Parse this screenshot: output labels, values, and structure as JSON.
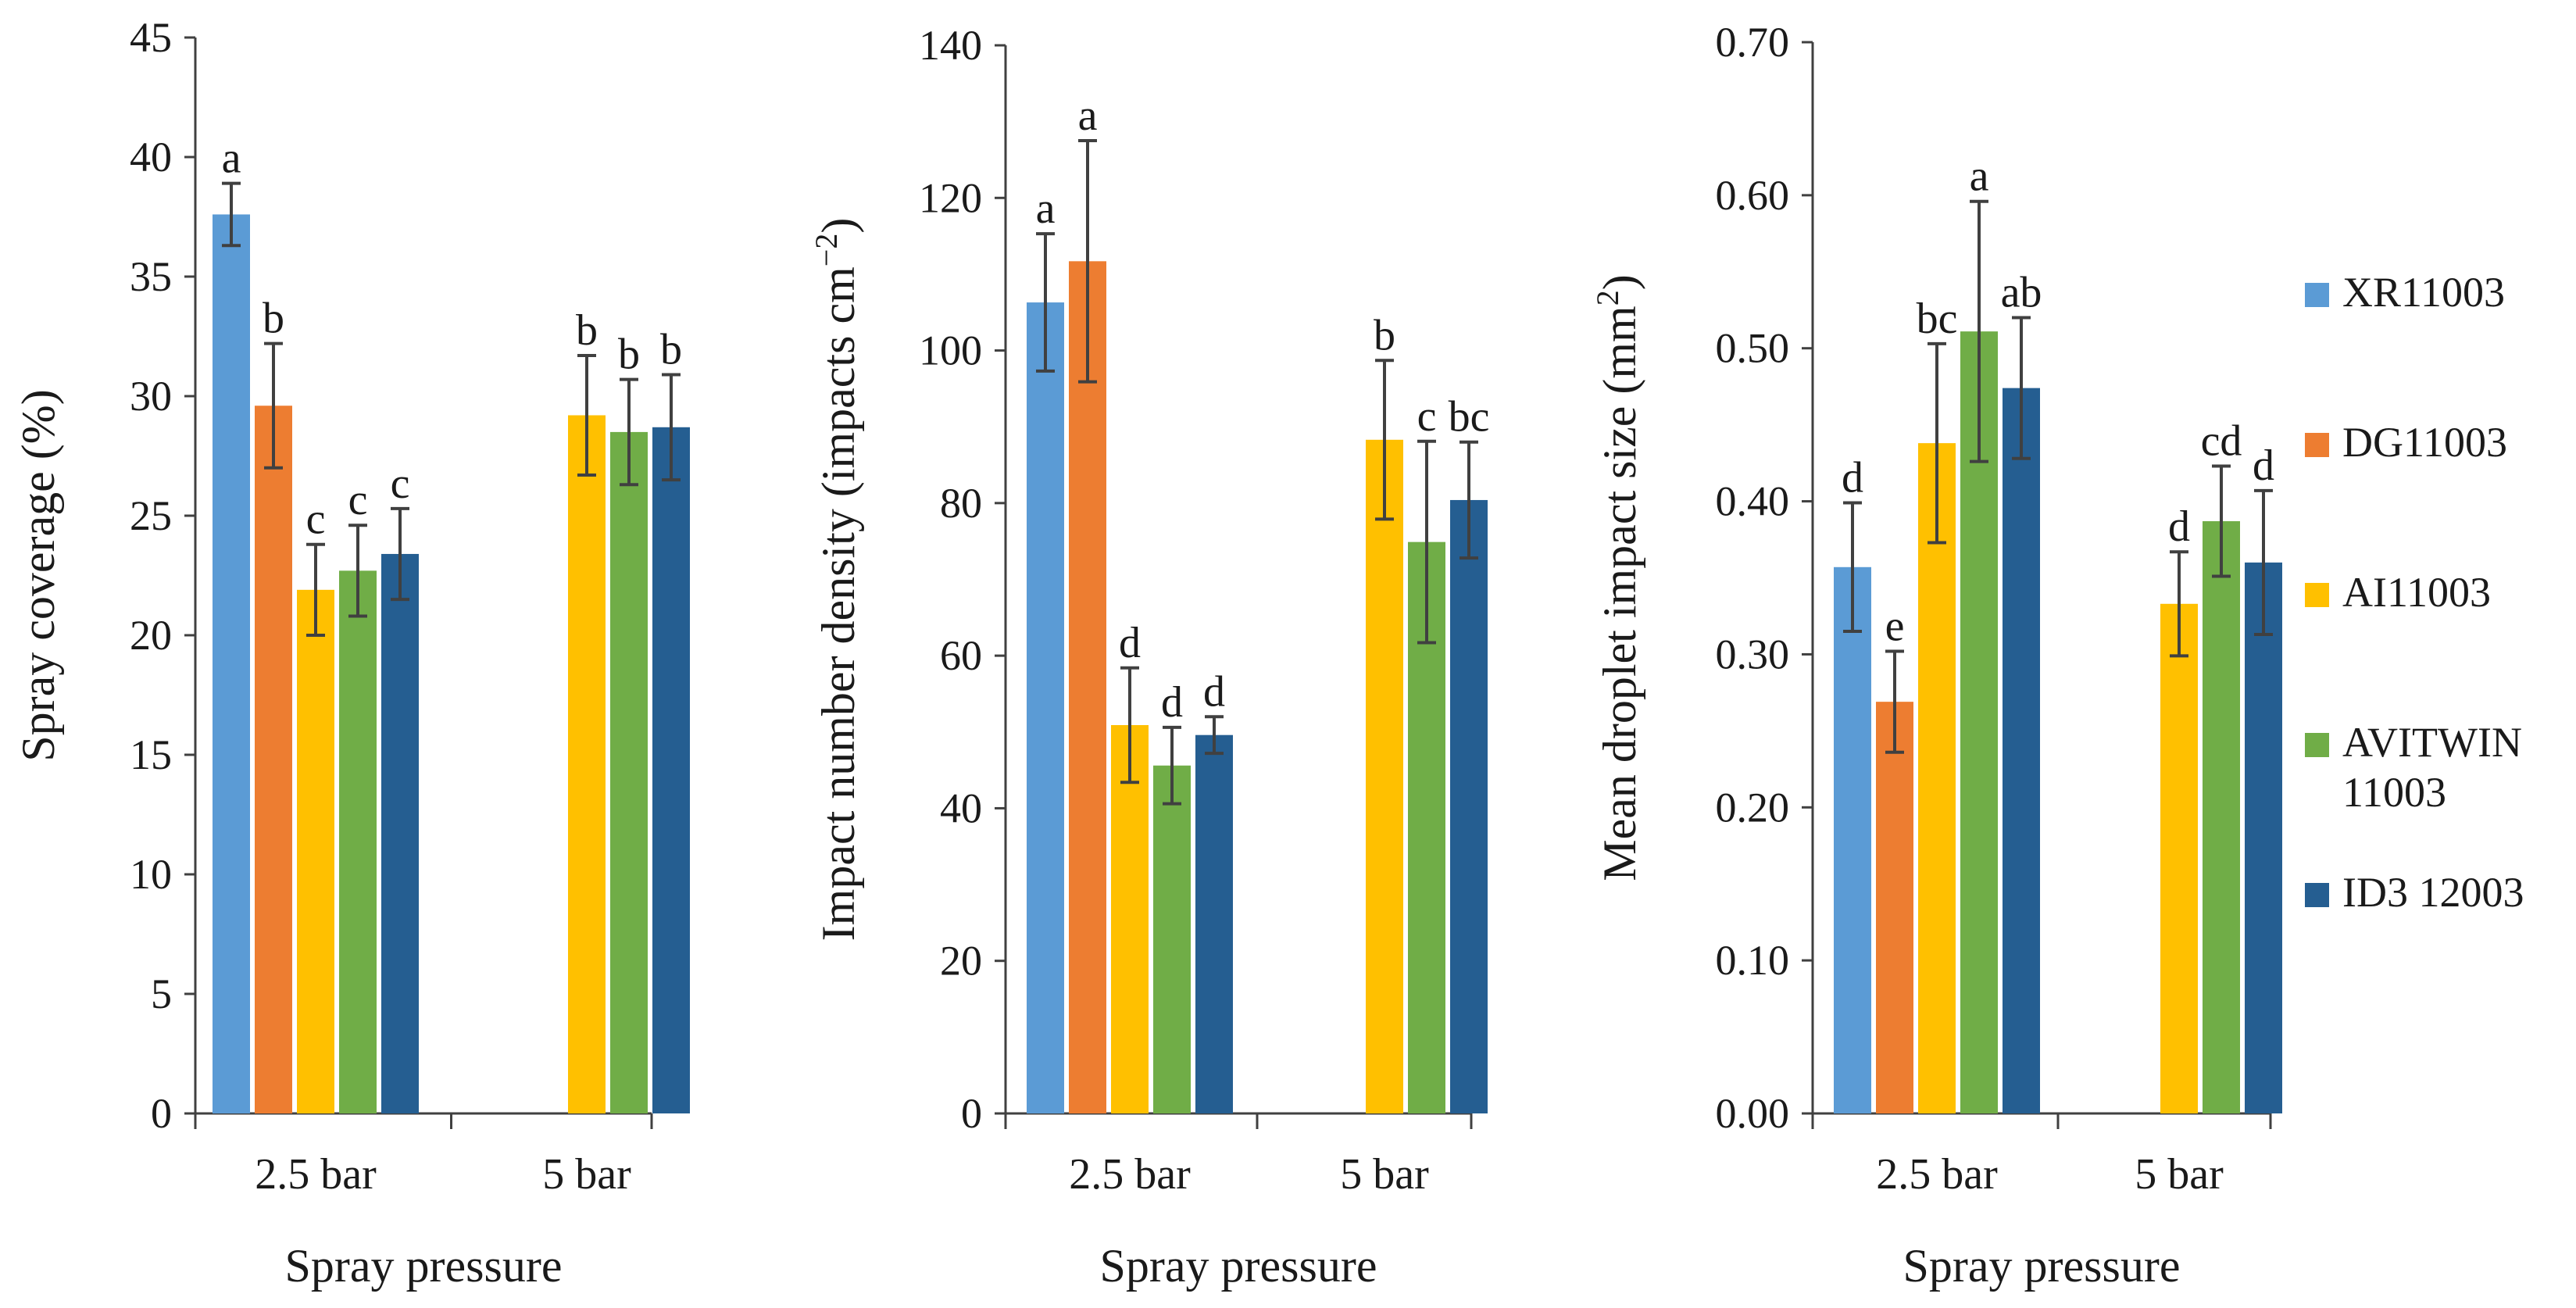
{
  "series_colors": {
    "XR11003": "#5B9BD5",
    "DG11003": "#ED7D31",
    "AI11003": "#FFC000",
    "AVITWIN 11003": "#70AD47",
    "ID3 12003": "#255E91"
  },
  "legend": {
    "entries": [
      {
        "name": "XR11003",
        "lines": [
          "XR11003"
        ]
      },
      {
        "name": "DG11003",
        "lines": [
          "DG11003"
        ]
      },
      {
        "name": "AI11003",
        "lines": [
          "AI11003"
        ]
      },
      {
        "name": "AVITWIN 11003",
        "lines": [
          "AVITWIN",
          "11003"
        ]
      },
      {
        "name": "ID3 12003",
        "lines": [
          "ID3  12003"
        ]
      }
    ]
  },
  "chart_data": [
    {
      "type": "bar",
      "title": "",
      "xlabel": "Spray pressure",
      "ylabel": "Spray coverage (%)",
      "ylim": [
        0,
        45
      ],
      "yticks": [
        "0",
        "5",
        "10",
        "15",
        "20",
        "25",
        "30",
        "35",
        "40",
        "45"
      ],
      "categories": [
        "2.5 bar",
        "5 bar"
      ],
      "series": [
        {
          "name": "XR11003",
          "values": [
            37.6,
            null
          ],
          "errors": [
            1.3,
            null
          ],
          "letters": [
            "a",
            null
          ]
        },
        {
          "name": "DG11003",
          "values": [
            29.6,
            null
          ],
          "errors": [
            2.6,
            null
          ],
          "letters": [
            "b",
            null
          ]
        },
        {
          "name": "AI11003",
          "values": [
            21.9,
            29.2
          ],
          "errors": [
            1.9,
            2.5
          ],
          "letters": [
            "c",
            "b"
          ]
        },
        {
          "name": "AVITWIN 11003",
          "values": [
            22.7,
            28.5
          ],
          "errors": [
            1.9,
            2.2
          ],
          "letters": [
            "c",
            "b"
          ]
        },
        {
          "name": "ID3 12003",
          "values": [
            23.4,
            28.7
          ],
          "errors": [
            1.9,
            2.2
          ],
          "letters": [
            "c",
            "b"
          ]
        }
      ]
    },
    {
      "type": "bar",
      "title": "",
      "xlabel": "Spray pressure",
      "ylabel": "Impact number density (impacts cm",
      "ylabel_sup": "−2",
      "ylabel_end": ")",
      "ylim": [
        0,
        140
      ],
      "yticks": [
        "0",
        "20",
        "40",
        "60",
        "80",
        "100",
        "120",
        "140"
      ],
      "categories": [
        "2.5 bar",
        "5 bar"
      ],
      "series": [
        {
          "name": "XR11003",
          "values": [
            106.3,
            null
          ],
          "errors": [
            9.0,
            null
          ],
          "letters": [
            "a",
            null
          ]
        },
        {
          "name": "DG11003",
          "values": [
            111.7,
            null
          ],
          "errors": [
            15.8,
            null
          ],
          "letters": [
            "a",
            null
          ]
        },
        {
          "name": "AI11003",
          "values": [
            50.9,
            88.3
          ],
          "errors": [
            7.5,
            10.4
          ],
          "letters": [
            "d",
            "b"
          ]
        },
        {
          "name": "AVITWIN 11003",
          "values": [
            45.6,
            74.9
          ],
          "errors": [
            5.0,
            13.2
          ],
          "letters": [
            "d",
            "c"
          ]
        },
        {
          "name": "ID3 12003",
          "values": [
            49.6,
            80.4
          ],
          "errors": [
            2.4,
            7.6
          ],
          "letters": [
            "d",
            "bc"
          ]
        }
      ]
    },
    {
      "type": "bar",
      "title": "",
      "xlabel": "Spray pressure",
      "ylabel": "Mean droplet impact size (mm",
      "ylabel_sup": "2",
      "ylabel_end": ")",
      "ylim": [
        0,
        0.7
      ],
      "yticks": [
        "0.00",
        "0.10",
        "0.20",
        "0.30",
        "0.40",
        "0.50",
        "0.60",
        "0.70"
      ],
      "categories": [
        "2.5 bar",
        "5 bar"
      ],
      "series": [
        {
          "name": "XR11003",
          "values": [
            0.357,
            null
          ],
          "errors": [
            0.042,
            null
          ],
          "letters": [
            "d",
            null
          ]
        },
        {
          "name": "DG11003",
          "values": [
            0.269,
            null
          ],
          "errors": [
            0.033,
            null
          ],
          "letters": [
            "e",
            null
          ]
        },
        {
          "name": "AI11003",
          "values": [
            0.438,
            0.333
          ],
          "errors": [
            0.065,
            0.034
          ],
          "letters": [
            "bc",
            "d"
          ]
        },
        {
          "name": "AVITWIN 11003",
          "values": [
            0.511,
            0.387
          ],
          "errors": [
            0.085,
            0.036
          ],
          "letters": [
            "a",
            "cd"
          ]
        },
        {
          "name": "ID3 12003",
          "values": [
            0.474,
            0.36
          ],
          "errors": [
            0.046,
            0.047
          ],
          "letters": [
            "ab",
            "d"
          ]
        }
      ]
    }
  ]
}
